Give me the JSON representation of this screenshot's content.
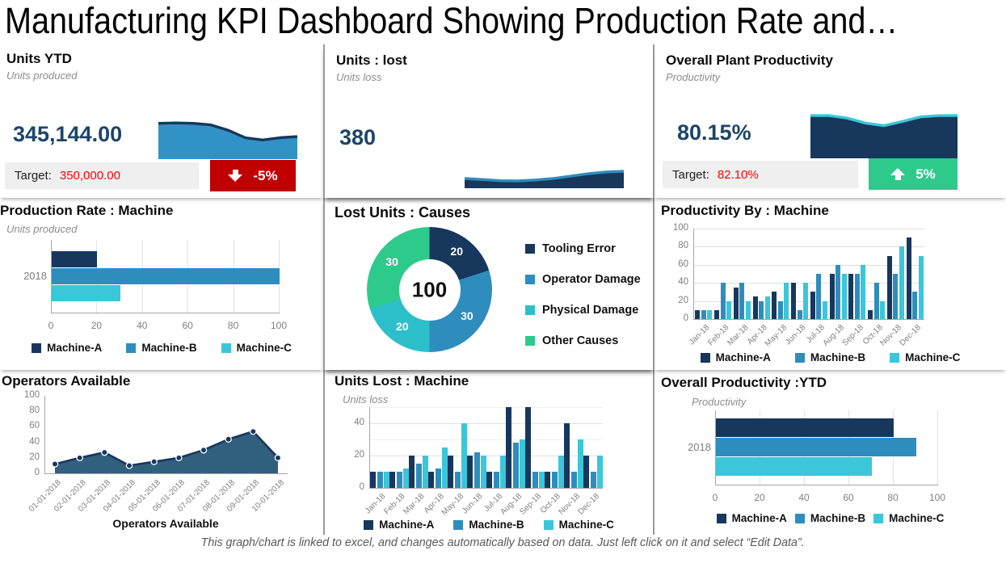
{
  "page": {
    "title": "Manufacturing KPI Dashboard Showing Production Rate and…",
    "footer": "This graph/chart is linked to excel, and changes automatically based on data. Just left click on it and select “Edit Data”."
  },
  "colors": {
    "navy": "#17375d",
    "blue": "#2f8dbd",
    "cyan": "#3bc6d9",
    "green": "#2eca8c",
    "red": "#c00000",
    "red_text": "#fe0000",
    "value": "#1c4569"
  },
  "kpis": [
    {
      "title": "Units YTD",
      "subtitle": "Units produced",
      "value": "345,144.00",
      "target_label": "Target:",
      "target_value": "350,000.00",
      "badge": {
        "text": "-5%",
        "direction": "down",
        "color": "#c00000"
      },
      "spark": {
        "type": "area",
        "values": [
          88,
          89,
          88,
          84,
          70,
          50,
          44,
          50,
          53
        ],
        "fill": "#3193c5",
        "line": "#17375d"
      }
    },
    {
      "title": "Units : lost",
      "subtitle": "Units loss",
      "value": "380",
      "spark": {
        "type": "area",
        "values": [
          30,
          26,
          21,
          20,
          24,
          30,
          40,
          50,
          57,
          60
        ],
        "fill": "#17375d",
        "line": "#2f8dbd"
      }
    },
    {
      "title": "Overall Plant Productivity",
      "subtitle": "Productivity",
      "value": "80.15%",
      "target_label": "Target:",
      "target_value": "82.10%",
      "badge": {
        "text": "5%",
        "direction": "up",
        "color": "#2eca8c"
      },
      "spark": {
        "type": "area",
        "values": [
          96,
          96,
          90,
          78,
          72,
          82,
          93,
          96,
          96
        ],
        "fill": "#17375d",
        "line": "#3bc6d9"
      }
    }
  ],
  "chart_data": [
    {
      "id": "production-rate",
      "type": "bar",
      "orientation": "horizontal",
      "title": "Production Rate : Machine",
      "subtitle": "Units produced",
      "categories": [
        "2018"
      ],
      "series": [
        {
          "name": "Machine-A",
          "color": "#17375d",
          "values": [
            20
          ]
        },
        {
          "name": "Machine-B",
          "color": "#2f8dbd",
          "values": [
            100
          ]
        },
        {
          "name": "Machine-C",
          "color": "#3bc6d9",
          "values": [
            30
          ]
        }
      ],
      "xlim": [
        0,
        100
      ],
      "ticks": [
        0,
        20,
        40,
        60,
        80,
        100
      ],
      "legend_position": "bottom"
    },
    {
      "id": "lost-causes",
      "type": "pie",
      "title": "Lost Units : Causes",
      "center_total": "100",
      "slices": [
        {
          "label": "Tooling Error",
          "value": 20,
          "color": "#17375d"
        },
        {
          "label": "Operator Damage",
          "value": 30,
          "color": "#2f8dbd"
        },
        {
          "label": "Physical Damage",
          "value": 20,
          "color": "#2cbfca"
        },
        {
          "label": "Other Causes",
          "value": 30,
          "color": "#2eca8c"
        }
      ],
      "legend_position": "right"
    },
    {
      "id": "productivity-machine",
      "type": "bar",
      "title": "Productivity By : Machine",
      "categories": [
        "Jan-18",
        "Feb-18",
        "Mar-18",
        "Apr-18",
        "May-18",
        "Jun-18",
        "Jul-18",
        "Aug-18",
        "Sep-18",
        "Oct-18",
        "Nov-18",
        "Dec-18"
      ],
      "series": [
        {
          "name": "Machine-A",
          "color": "#17375d",
          "values": [
            10,
            10,
            35,
            25,
            30,
            40,
            30,
            50,
            50,
            10,
            70,
            90
          ]
        },
        {
          "name": "Machine-B",
          "color": "#2f8dbd",
          "values": [
            10,
            40,
            40,
            20,
            20,
            10,
            50,
            60,
            50,
            40,
            50,
            30
          ]
        },
        {
          "name": "Machine-C",
          "color": "#3bc6d9",
          "values": [
            10,
            20,
            20,
            25,
            40,
            40,
            20,
            50,
            60,
            20,
            80,
            70
          ]
        }
      ],
      "ylim": [
        0,
        100
      ],
      "yticks": [
        0,
        20,
        40,
        60,
        80,
        100
      ],
      "legend_position": "bottom"
    },
    {
      "id": "operators",
      "type": "area",
      "title": "Operators Available",
      "x": [
        "01-01-2018",
        "02-01-2018",
        "03-01-2018",
        "04-01-2018",
        "05-01-2018",
        "06-01-2018",
        "07-01-2018",
        "08-01-2018",
        "09-01-2018",
        "10-01-2018"
      ],
      "values": [
        12,
        20,
        27,
        10,
        15,
        20,
        30,
        44,
        54,
        20
      ],
      "ylim": [
        0,
        100
      ],
      "yticks": [
        0,
        20,
        40,
        60,
        80,
        100
      ],
      "xlabel": "Operators Available",
      "fill_color": "#31607f",
      "line_color": "#17375d",
      "marker_color": "#17375d"
    },
    {
      "id": "units-lost-machine",
      "type": "bar",
      "title": "Units Lost : Machine",
      "subtitle": "Units loss",
      "categories": [
        "Jan-18",
        "Feb-18",
        "Mar-18",
        "Apr-18",
        "May-18",
        "Jun-18",
        "Jul-18",
        "Aug-18",
        "Sep-18",
        "Oct-18",
        "Nov-18",
        "Dec-18"
      ],
      "series": [
        {
          "name": "Machine-A",
          "color": "#17375d",
          "values": [
            10,
            10,
            20,
            10,
            20,
            20,
            10,
            50,
            50,
            10,
            40,
            20
          ]
        },
        {
          "name": "Machine-B",
          "color": "#2f8dbd",
          "values": [
            10,
            10,
            15,
            12,
            10,
            22,
            10,
            28,
            10,
            10,
            10,
            10
          ]
        },
        {
          "name": "Machine-C",
          "color": "#3bc6d9",
          "values": [
            10,
            12,
            20,
            25,
            40,
            20,
            20,
            30,
            10,
            20,
            30,
            20
          ]
        }
      ],
      "ylim": [
        0,
        50
      ],
      "yticks": [
        0,
        20,
        40
      ],
      "gridlines": [
        10,
        20,
        30,
        40,
        50
      ],
      "legend_position": "bottom"
    },
    {
      "id": "overall-productivity",
      "type": "bar",
      "orientation": "horizontal",
      "title": "Overall Productivity :YTD",
      "subtitle": "Productivity",
      "categories": [
        "2018"
      ],
      "series": [
        {
          "name": "Machine-A",
          "color": "#17375d",
          "values": [
            80
          ]
        },
        {
          "name": "Machine-B",
          "color": "#2f8dbd",
          "values": [
            90
          ]
        },
        {
          "name": "Machine-C",
          "color": "#3bc6d9",
          "values": [
            70
          ]
        }
      ],
      "xlim": [
        0,
        100
      ],
      "ticks": [
        0,
        20,
        40,
        60,
        80,
        100
      ],
      "legend_position": "bottom"
    }
  ]
}
